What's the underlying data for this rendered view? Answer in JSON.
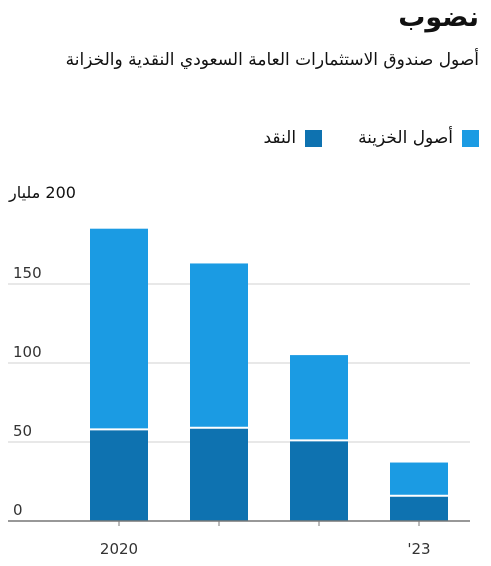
{
  "chart_data": {
    "type": "bar",
    "stacked": true,
    "title": "نضوب",
    "subtitle": "أصول صندوق الاستثمارات العامة السعودي النقدية والخزانة",
    "unit_label": "200 مليار",
    "categories": [
      "2020",
      "",
      "",
      "'23"
    ],
    "series": [
      {
        "name": "النقد",
        "color": "#0e72b0",
        "values": [
          58,
          59,
          51,
          16
        ]
      },
      {
        "name": "أصول الخزينة",
        "color": "#1b9be3",
        "values": [
          127,
          104,
          54,
          21
        ]
      }
    ],
    "yticks": [
      0,
      50,
      100,
      150
    ],
    "ylim": [
      0,
      200
    ],
    "grid": true,
    "legend_position": "top-right"
  }
}
